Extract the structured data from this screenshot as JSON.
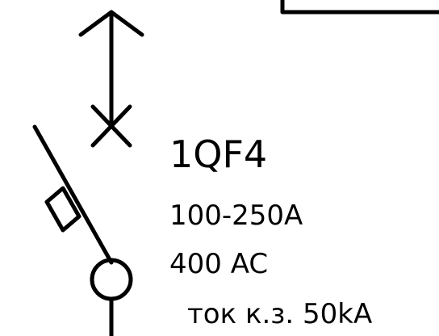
{
  "breaker": {
    "designation": "1QF4",
    "rated_current": "100-250A",
    "rated_voltage": "400 AC",
    "short_circuit": "ток к.з. 50kA"
  },
  "colors": {
    "stroke": "#000000",
    "background": "#ffffff"
  }
}
